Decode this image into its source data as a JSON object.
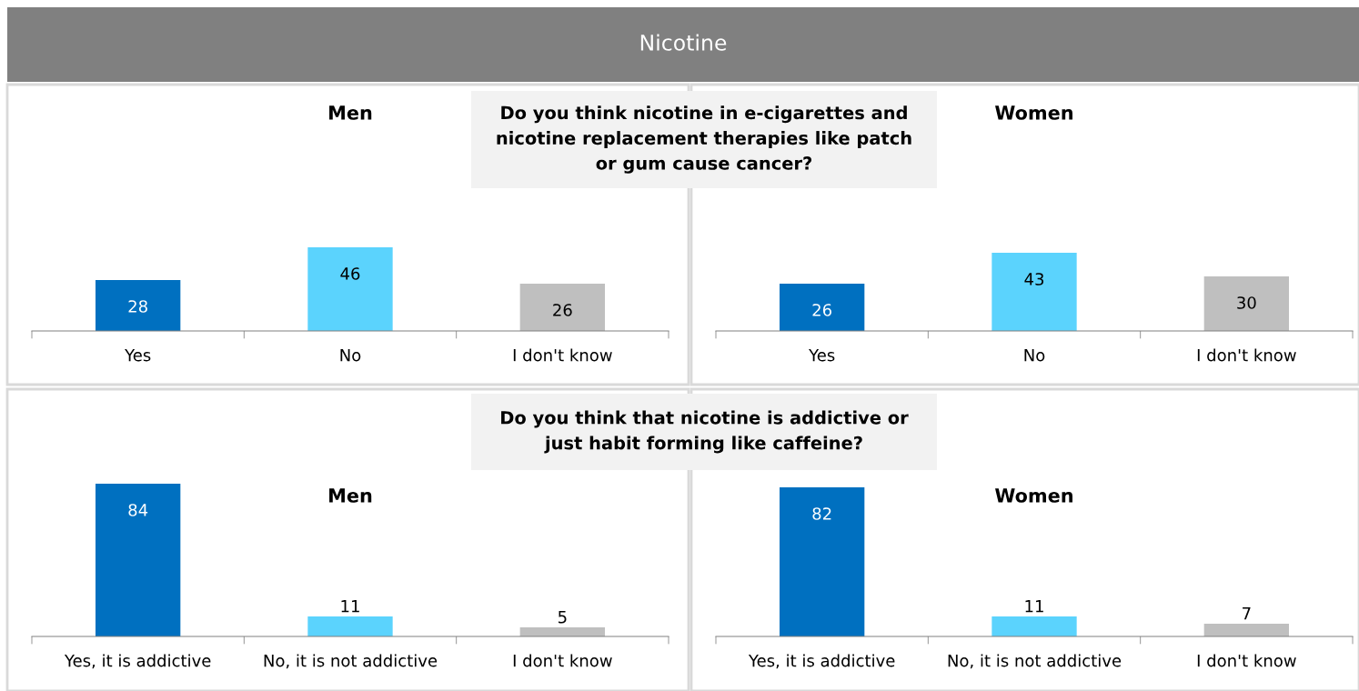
{
  "chart_data": [
    {
      "type": "other",
      "title": "Nicotine"
    },
    {
      "type": "other",
      "title": "Do you think nicotine in e-cigarettes and\nnicotine replacement therapies like patch\nor gum cause cancer?"
    },
    {
      "type": "bar",
      "title": "Men",
      "categories": [
        "Yes",
        "No",
        "I don't know"
      ],
      "values": [
        28,
        46,
        26
      ],
      "colors": [
        "#0070c0",
        "#5bd3fd",
        "#bfbfbf"
      ],
      "data_labels": true
    },
    {
      "type": "bar",
      "title": "Women",
      "categories": [
        "Yes",
        "No",
        "I don't know"
      ],
      "values": [
        26,
        43,
        30
      ],
      "colors": [
        "#0070c0",
        "#5bd3fd",
        "#bfbfbf"
      ],
      "data_labels": true
    },
    {
      "type": "other",
      "title": "Do you think that nicotine is addictive or\njust habit forming like caffeine?"
    },
    {
      "type": "bar",
      "title": "Men",
      "categories": [
        "Yes, it is addictive",
        "No, it is not addictive",
        "I don't know"
      ],
      "values": [
        84,
        11,
        5
      ],
      "colors": [
        "#0070c0",
        "#5bd3fd",
        "#bfbfbf"
      ],
      "data_labels": true
    },
    {
      "type": "bar",
      "title": "Women",
      "categories": [
        "Yes, it is addictive",
        "No, it is not addictive",
        "I don't know"
      ],
      "values": [
        82,
        11,
        7
      ],
      "colors": [
        "#0070c0",
        "#5bd3fd",
        "#bfbfbf"
      ],
      "data_labels": true
    }
  ]
}
